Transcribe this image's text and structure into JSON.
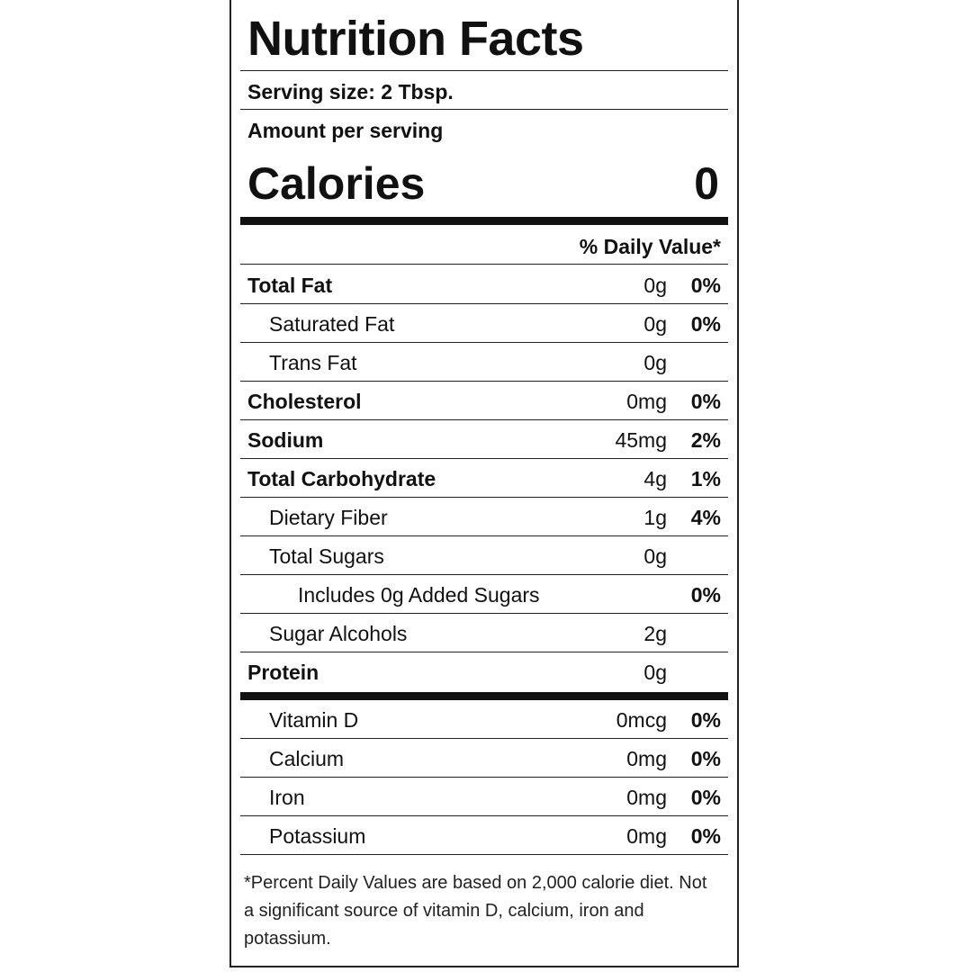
{
  "label": {
    "title": "Nutrition Facts",
    "serving_size": "Serving size: 2 Tbsp.",
    "amount_per_serving": "Amount per serving",
    "calories_label": "Calories",
    "calories_value": "0",
    "daily_value_header": "% Daily Value*",
    "nutrients": [
      {
        "name": "Total Fat",
        "amount": "0g",
        "dv": "0%",
        "style": "bold"
      },
      {
        "name": "Saturated Fat",
        "amount": "0g",
        "dv": "0%",
        "style": "sub"
      },
      {
        "name": "Trans Fat",
        "amount": "0g",
        "dv": "",
        "style": "sub"
      },
      {
        "name": "Cholesterol",
        "amount": "0mg",
        "dv": "0%",
        "style": "bold"
      },
      {
        "name": "Sodium",
        "amount": "45mg",
        "dv": "2%",
        "style": "bold"
      },
      {
        "name": "Total Carbohydrate",
        "amount": "4g",
        "dv": "1%",
        "style": "bold"
      },
      {
        "name": "Dietary Fiber",
        "amount": "1g",
        "dv": "4%",
        "style": "sub"
      },
      {
        "name": "Total Sugars",
        "amount": "0g",
        "dv": "",
        "style": "sub"
      },
      {
        "name": "Includes 0g Added Sugars",
        "amount": "",
        "dv": "0%",
        "style": "subsub"
      },
      {
        "name": "Sugar Alcohols",
        "amount": "2g",
        "dv": "",
        "style": "sub"
      },
      {
        "name": "Protein",
        "amount": "0g",
        "dv": "",
        "style": "bold"
      }
    ],
    "vitamins": [
      {
        "name": "Vitamin D",
        "amount": "0mcg",
        "dv": "0%"
      },
      {
        "name": "Calcium",
        "amount": "0mg",
        "dv": "0%"
      },
      {
        "name": "Iron",
        "amount": "0mg",
        "dv": "0%"
      },
      {
        "name": "Potassium",
        "amount": "0mg",
        "dv": "0%"
      }
    ],
    "footnote": "*Percent Daily Values are based on 2,000 calorie diet. Not a significant source of vitamin D, calcium, iron and potassium."
  }
}
